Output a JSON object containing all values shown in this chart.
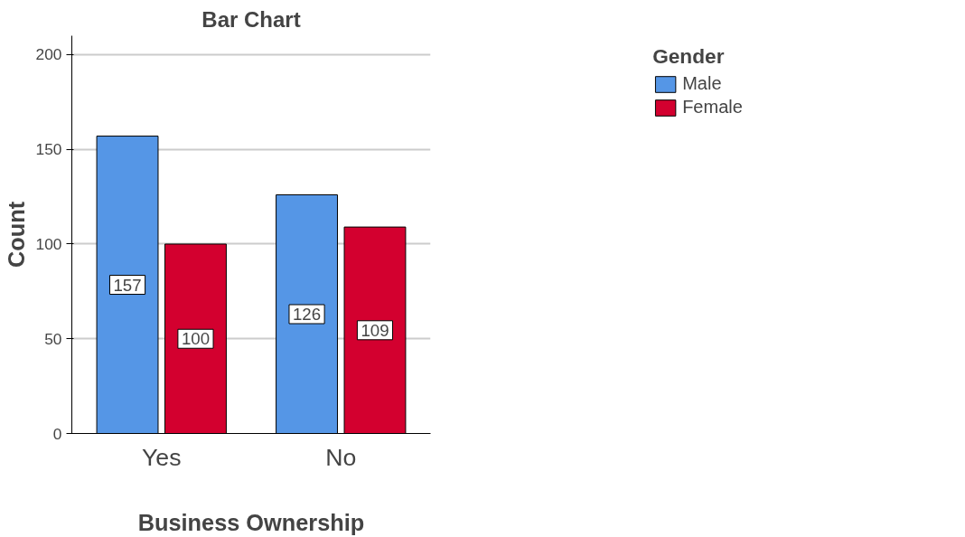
{
  "chart_data": {
    "type": "bar",
    "title": "Bar Chart",
    "xlabel": "Business Ownership",
    "ylabel": "Count",
    "legend_title": "Gender",
    "categories": [
      "Yes",
      "No"
    ],
    "series": [
      {
        "name": "Male",
        "color": "#5596e6",
        "values": [
          157,
          126
        ]
      },
      {
        "name": "Female",
        "color": "#d3002f",
        "values": [
          100,
          109
        ]
      }
    ],
    "ylim": [
      0,
      210
    ],
    "yticks": [
      0,
      50,
      100,
      150,
      200
    ],
    "grid": "y",
    "legend": "top right",
    "data_labels": true
  }
}
